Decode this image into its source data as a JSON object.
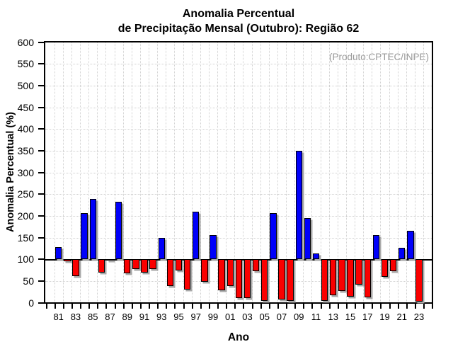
{
  "title": {
    "line1": "Anomalia Percentual",
    "line2": "de Precipitação Mensal (Outubro): Região 62"
  },
  "annotation": "(Produto:CPTEC/INPE)",
  "chart_data": {
    "type": "bar",
    "title": "Anomalia Percentual de Precipitação Mensal (Outubro): Região 62",
    "xlabel": "Ano",
    "ylabel": "Anomalia Percentual (%)",
    "ylim": [
      0,
      600
    ],
    "ytick_step": 50,
    "baseline": 100,
    "grid": "dotted",
    "legend": "none",
    "categories": [
      "81",
      "82",
      "83",
      "84",
      "85",
      "86",
      "87",
      "88",
      "89",
      "90",
      "91",
      "92",
      "93",
      "94",
      "95",
      "96",
      "97",
      "98",
      "99",
      "00",
      "01",
      "02",
      "03",
      "04",
      "05",
      "06",
      "07",
      "08",
      "09",
      "10",
      "11",
      "12",
      "13",
      "14",
      "15",
      "16",
      "17",
      "18",
      "19",
      "20",
      "21",
      "22",
      "23"
    ],
    "values": [
      128,
      96,
      61,
      207,
      239,
      69,
      99,
      232,
      68,
      77,
      69,
      77,
      149,
      38,
      74,
      30,
      210,
      48,
      156,
      28,
      38,
      11,
      10,
      72,
      4,
      206,
      7,
      4,
      350,
      195,
      113,
      4,
      17,
      27,
      14,
      42,
      12,
      156,
      59,
      72,
      127,
      165,
      3
    ],
    "x_tick_labels": [
      "81",
      "83",
      "85",
      "87",
      "89",
      "91",
      "93",
      "95",
      "97",
      "99",
      "01",
      "03",
      "05",
      "07",
      "09",
      "11",
      "13",
      "15",
      "17",
      "19",
      "21",
      "23"
    ],
    "colors": {
      "above_baseline": "#0000fa",
      "below_baseline": "#fa0000",
      "bar_outline": "#000000",
      "bar_shadow": "#a8a8a8",
      "grid": "#d0d0d0",
      "axis": "#000000",
      "annotation_text": "#999999"
    }
  }
}
